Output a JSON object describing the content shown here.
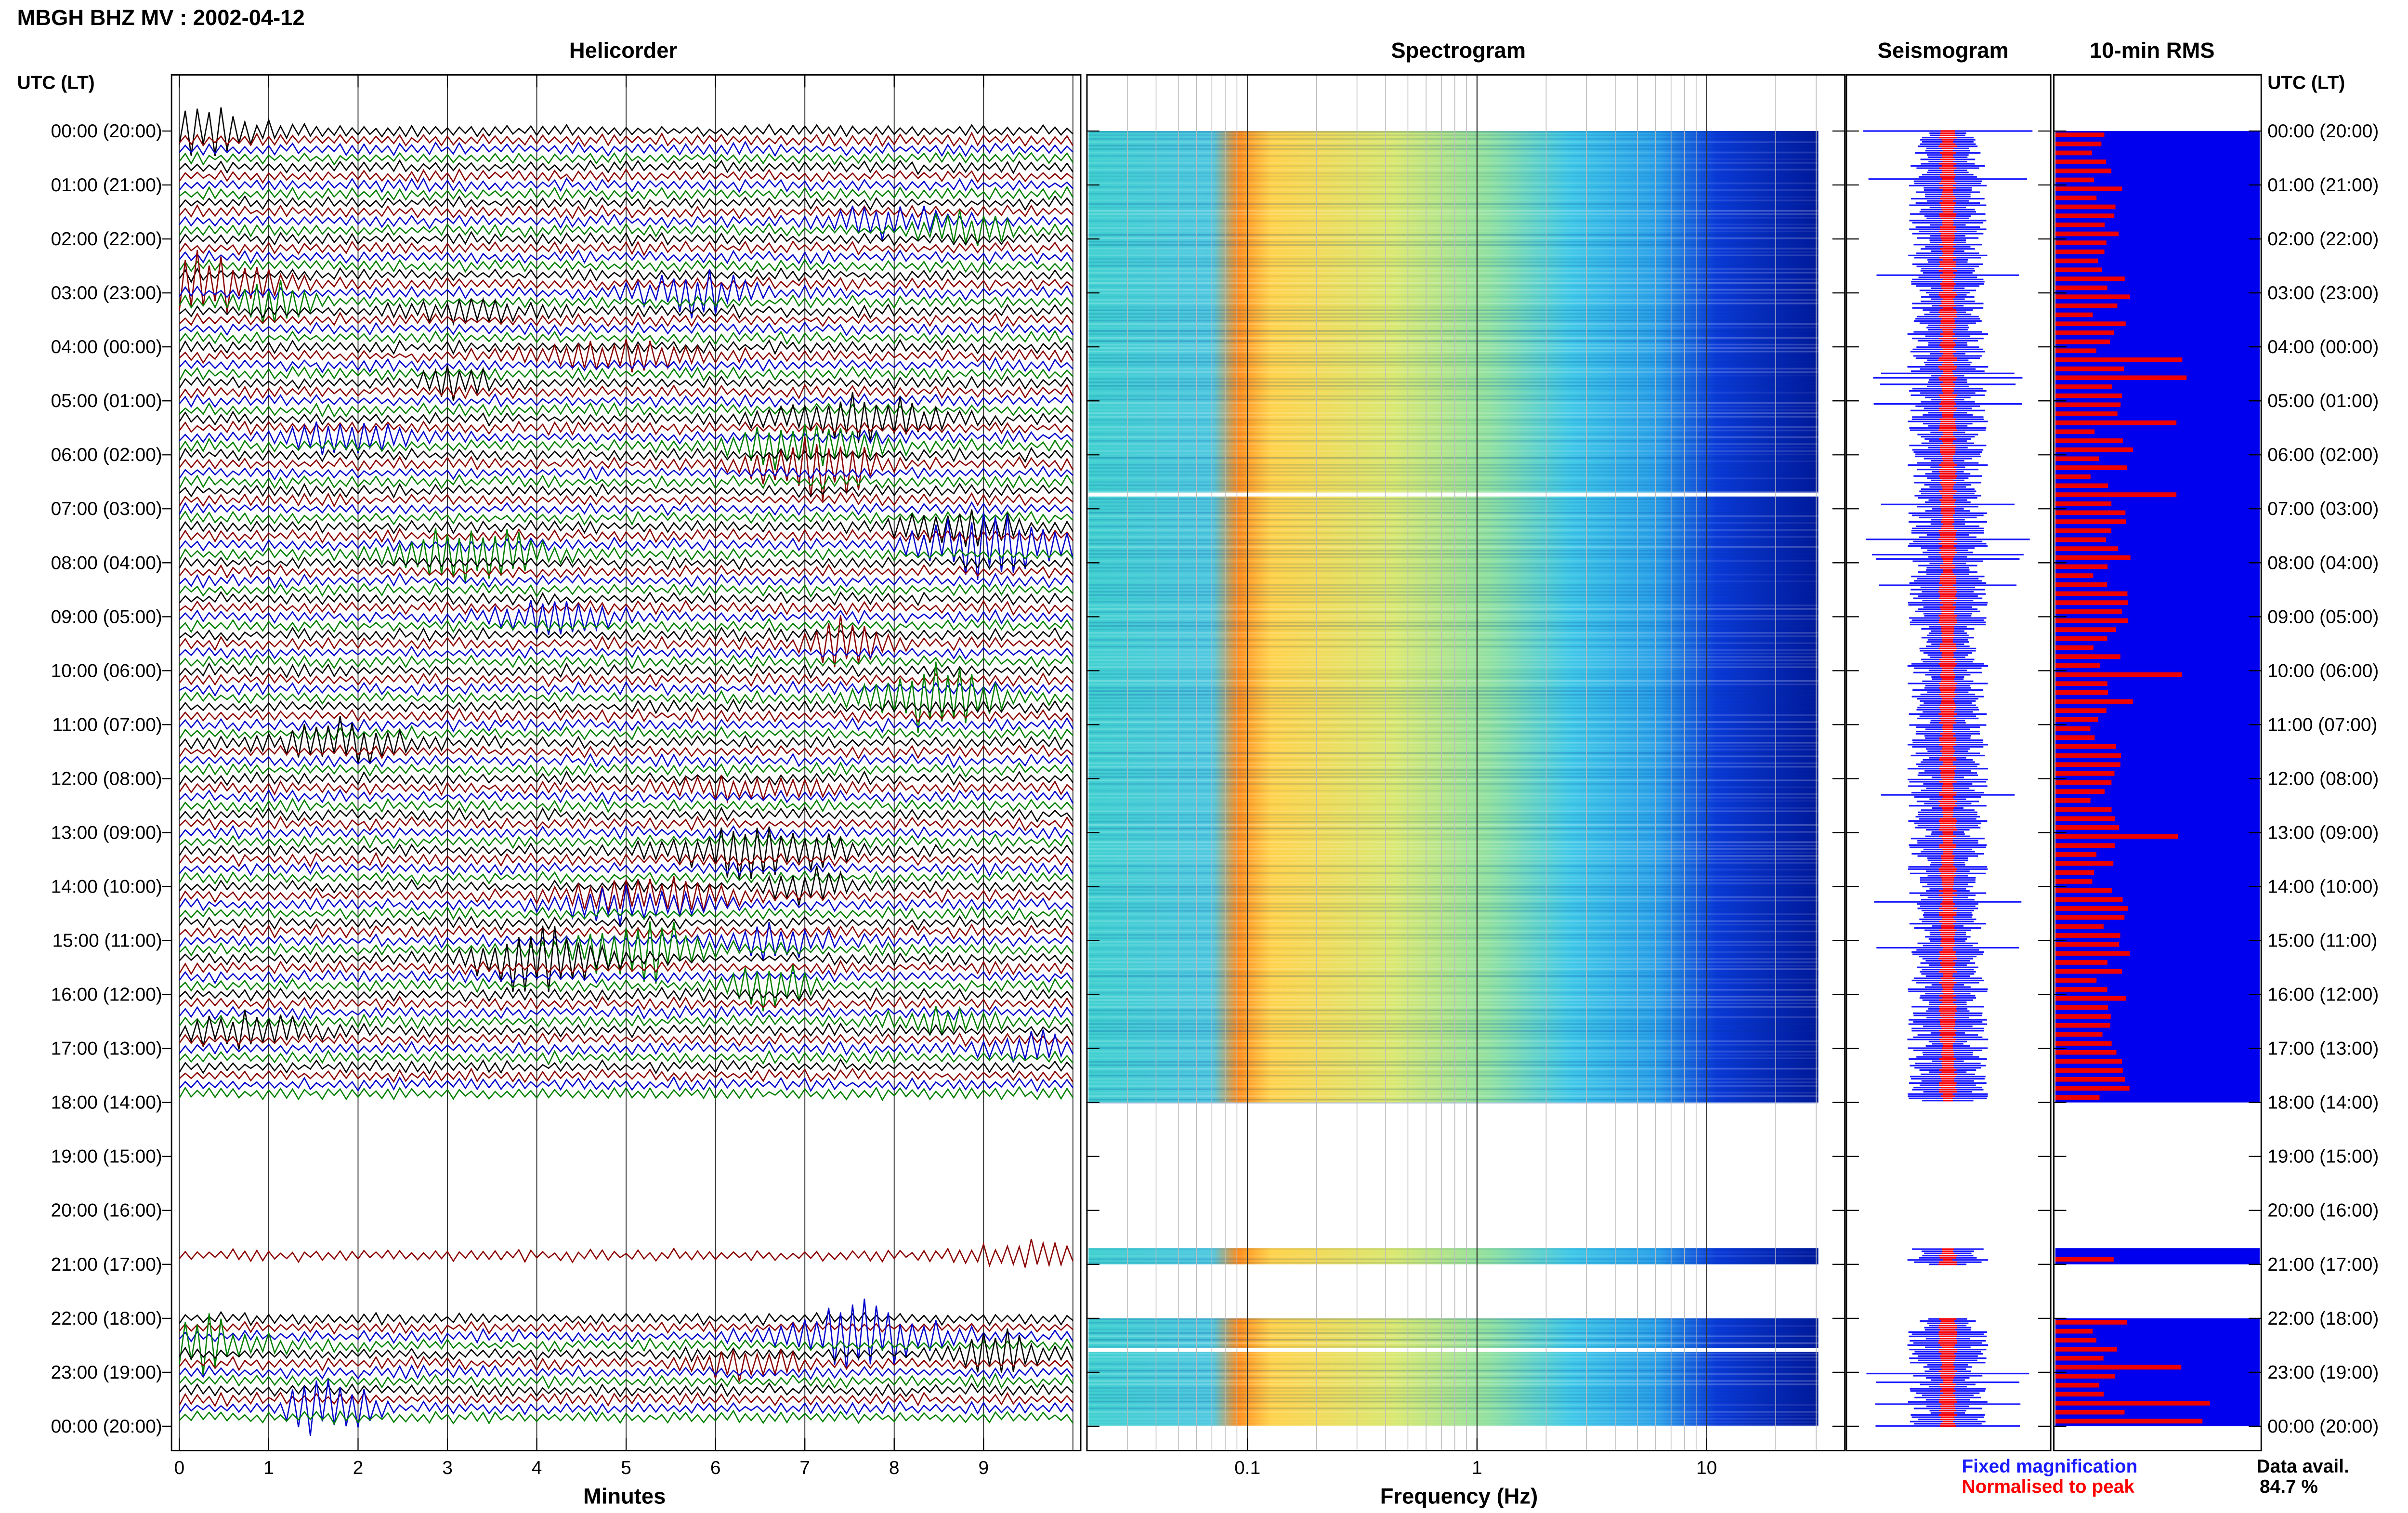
{
  "page": {
    "title": "MBGH BHZ MV : 2002-04-12",
    "utc_header_left": "UTC (LT)",
    "utc_header_right": "UTC (LT)"
  },
  "panels": {
    "helicorder": "Helicorder",
    "spectrogram": "Spectrogram",
    "seismogram": "Seismogram",
    "rms": "10-min RMS"
  },
  "axes": {
    "helicorder_xlabel": "Minutes",
    "spectrogram_xlabel": "Frequency (Hz)"
  },
  "legend": {
    "fixed": "Fixed magnification",
    "normalised": "Normalised to peak",
    "fixed_color": "#1a1aff",
    "normalised_color": "#ff0000"
  },
  "data_avail": {
    "label": "Data avail.",
    "value": "84.7 %"
  },
  "chart_data": {
    "type": "heatmap",
    "time_rows": [
      "00:00 (20:00)",
      "01:00 (21:00)",
      "02:00 (22:00)",
      "03:00 (23:00)",
      "04:00 (00:00)",
      "05:00 (01:00)",
      "06:00 (02:00)",
      "07:00 (03:00)",
      "08:00 (04:00)",
      "09:00 (05:00)",
      "10:00 (06:00)",
      "11:00 (07:00)",
      "12:00 (08:00)",
      "13:00 (09:00)",
      "14:00 (10:00)",
      "15:00 (11:00)",
      "16:00 (12:00)",
      "17:00 (13:00)",
      "18:00 (14:00)",
      "19:00 (15:00)",
      "20:00 (16:00)",
      "21:00 (17:00)",
      "22:00 (18:00)",
      "23:00 (19:00)",
      "00:00 (20:00)"
    ],
    "helicorder_minute_ticks": [
      "0",
      "1",
      "2",
      "3",
      "4",
      "5",
      "6",
      "7",
      "8",
      "9"
    ],
    "helicorder_xlim": [
      0,
      10
    ],
    "spectrogram_freq_ticks": [
      "0.1",
      "1",
      "10"
    ],
    "spectrogram_xlim_hz": [
      0.02,
      40
    ],
    "spectrogram_xscale": "log",
    "data_gaps_utc": [
      [
        18.0,
        20.7
      ],
      [
        21.0,
        22.0
      ]
    ],
    "trace_colors": [
      "#000000",
      "#8b0000",
      "#0000cc",
      "#008000"
    ],
    "rms_colors": {
      "fixed": "#0000ee",
      "normalised": "#ee0000"
    }
  }
}
